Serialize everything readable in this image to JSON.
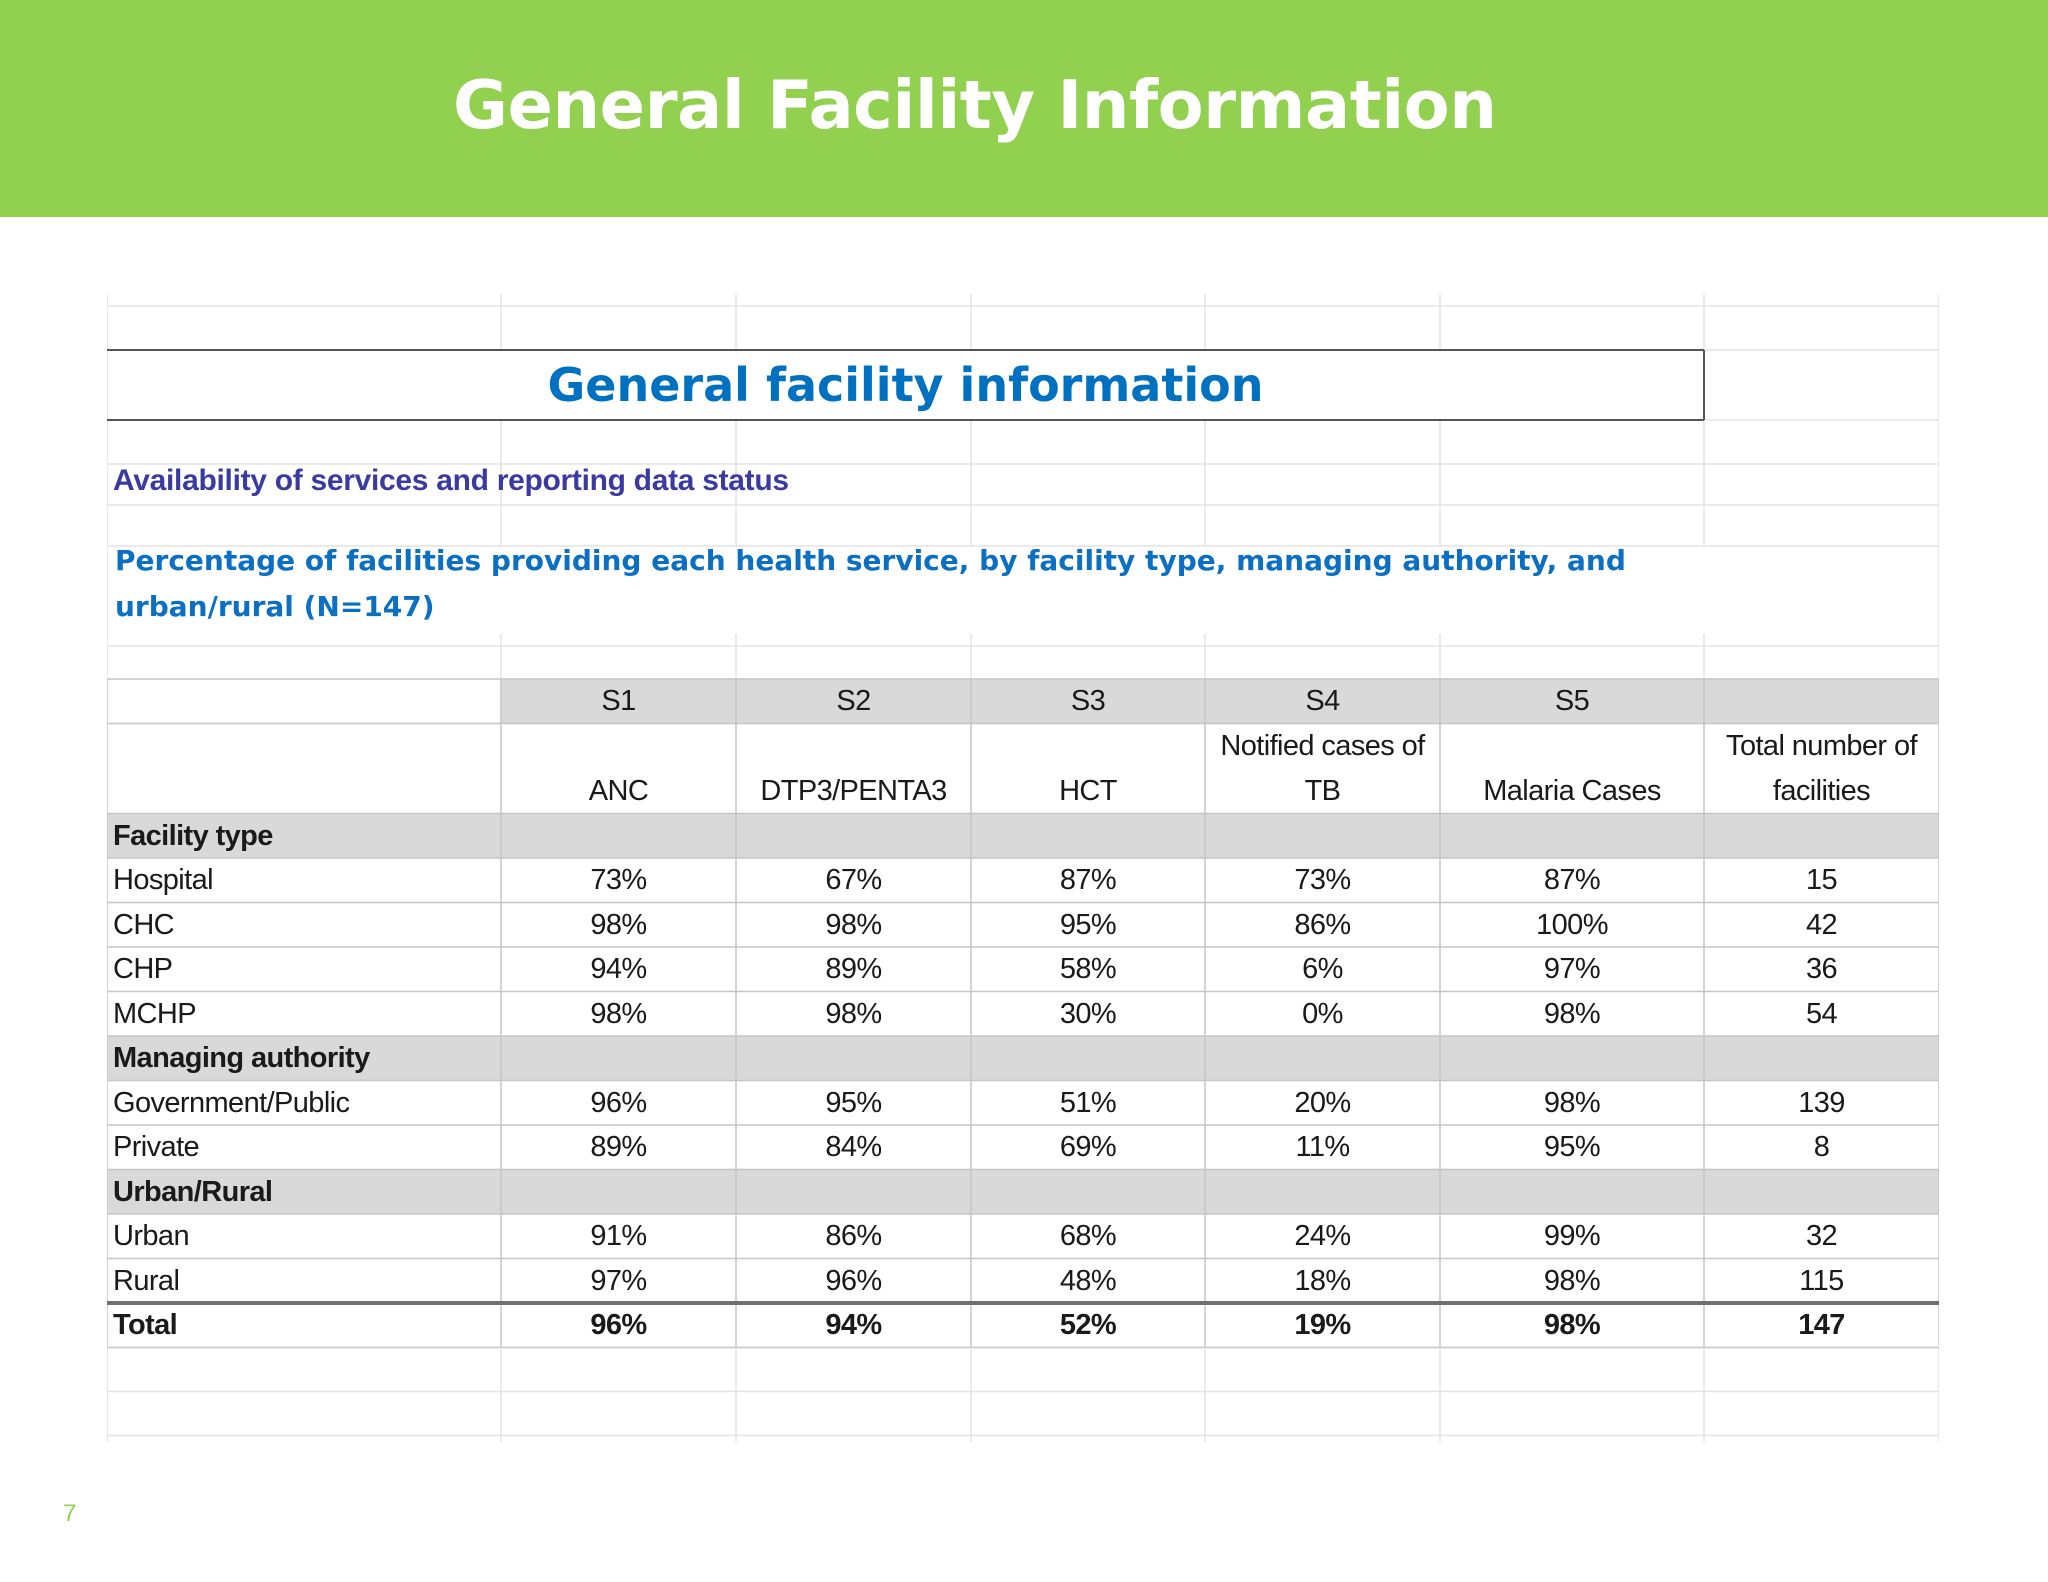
{
  "slide": {
    "title": "General Facility Information",
    "page_number": "7"
  },
  "sheet": {
    "main_title": "General facility information",
    "subtitle": "Availability of services and reporting data status",
    "caption": "Percentage of facilities providing each health service, by facility type, managing authority, and urban/rural (N=147)",
    "codes": [
      "S1",
      "S2",
      "S3",
      "S4",
      "S5",
      ""
    ],
    "headers": [
      [
        "ANC"
      ],
      [
        "DTP3/PENTA3"
      ],
      [
        "HCT"
      ],
      [
        "Notified cases of",
        "TB"
      ],
      [
        "Malaria Cases"
      ],
      [
        "Total number of",
        "facilities"
      ]
    ],
    "rows": [
      {
        "type": "section",
        "label": "Facility type"
      },
      {
        "type": "data",
        "label": "Hospital",
        "values": [
          "73%",
          "67%",
          "87%",
          "73%",
          "87%",
          "15"
        ]
      },
      {
        "type": "data",
        "label": "CHC",
        "values": [
          "98%",
          "98%",
          "95%",
          "86%",
          "100%",
          "42"
        ]
      },
      {
        "type": "data",
        "label": "CHP",
        "values": [
          "94%",
          "89%",
          "58%",
          "6%",
          "97%",
          "36"
        ]
      },
      {
        "type": "data",
        "label": "MCHP",
        "values": [
          "98%",
          "98%",
          "30%",
          "0%",
          "98%",
          "54"
        ]
      },
      {
        "type": "section",
        "label": "Managing authority"
      },
      {
        "type": "data",
        "label": "Government/Public",
        "values": [
          "96%",
          "95%",
          "51%",
          "20%",
          "98%",
          "139"
        ]
      },
      {
        "type": "data",
        "label": "Private",
        "values": [
          "89%",
          "84%",
          "69%",
          "11%",
          "95%",
          "8"
        ]
      },
      {
        "type": "section",
        "label": "Urban/Rural"
      },
      {
        "type": "data",
        "label": "Urban",
        "values": [
          "91%",
          "86%",
          "68%",
          "24%",
          "99%",
          "32"
        ]
      },
      {
        "type": "data",
        "label": "Rural",
        "values": [
          "97%",
          "96%",
          "48%",
          "18%",
          "98%",
          "115"
        ]
      },
      {
        "type": "total",
        "label": "Total",
        "values": [
          "96%",
          "94%",
          "52%",
          "19%",
          "98%",
          "147"
        ]
      }
    ]
  },
  "colors": {
    "banner": "#92d050",
    "title_blue": "#0070c0",
    "subtitle_purple": "#3a3aa0",
    "header_gray": "#d9d9d9"
  }
}
